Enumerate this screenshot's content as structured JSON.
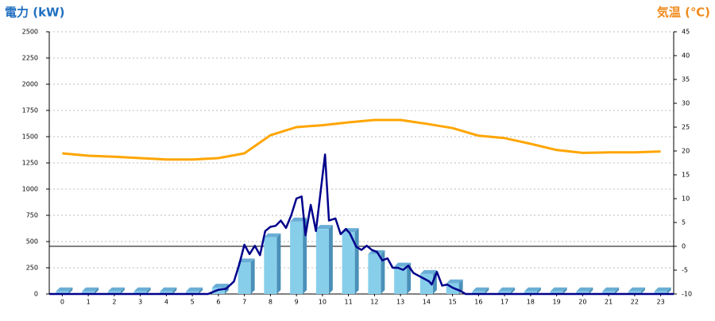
{
  "chart_data": {
    "type": "combo",
    "title": "電力 (kW)",
    "y2_title": "気温 (℃)",
    "categories": [
      "0",
      "1",
      "2",
      "3",
      "4",
      "5",
      "6",
      "7",
      "8",
      "9",
      "10",
      "11",
      "12",
      "13",
      "14",
      "15",
      "16",
      "17",
      "18",
      "19",
      "20",
      "21",
      "22",
      "23"
    ],
    "xlim": [
      -0.5,
      23.5
    ],
    "ylim": [
      0,
      2500
    ],
    "yticks": [
      0,
      250,
      500,
      750,
      1000,
      1250,
      1500,
      1750,
      2000,
      2250,
      2500
    ],
    "y2lim": [
      -10,
      45
    ],
    "y2ticks": [
      -10,
      -5,
      0,
      5,
      10,
      15,
      20,
      25,
      30,
      35,
      40,
      45
    ],
    "grid": true,
    "y2_zero_line": true,
    "series": [
      {
        "type": "bar",
        "color": "#87ceeb",
        "values": [
          25,
          25,
          25,
          25,
          25,
          25,
          60,
          300,
          540,
          690,
          620,
          590,
          380,
          260,
          190,
          100,
          25,
          25,
          25,
          25,
          25,
          25,
          25,
          25
        ]
      },
      {
        "type": "line",
        "color": "#ffa500",
        "axis": "y2",
        "values": [
          19.5,
          19,
          18.8,
          18.5,
          18.2,
          18.2,
          18.5,
          19.5,
          23.3,
          25,
          25.4,
          26,
          26.5,
          26.5,
          25.7,
          24.8,
          23.2,
          22.7,
          21.5,
          20.2,
          19.6,
          19.7,
          19.7,
          19.9
        ]
      },
      {
        "type": "line",
        "color": "#00008b",
        "x": [
          -0.5,
          5.6,
          6.0,
          6.3,
          6.6,
          6.8,
          7.0,
          7.2,
          7.4,
          7.6,
          7.8,
          8.0,
          8.2,
          8.4,
          8.6,
          8.8,
          9.0,
          9.2,
          9.35,
          9.55,
          9.75,
          10.1,
          10.25,
          10.5,
          10.7,
          10.9,
          11.05,
          11.3,
          11.5,
          11.7,
          11.9,
          12.1,
          12.3,
          12.5,
          12.7,
          12.9,
          13.1,
          13.3,
          13.5,
          13.8,
          14.1,
          14.2,
          14.4,
          14.6,
          14.8,
          15.0,
          15.3,
          15.5,
          23.5
        ],
        "values": [
          0,
          0,
          40,
          50,
          120,
          280,
          470,
          380,
          460,
          370,
          600,
          640,
          650,
          700,
          630,
          750,
          910,
          930,
          560,
          850,
          600,
          1330,
          700,
          720,
          570,
          620,
          580,
          450,
          420,
          460,
          420,
          400,
          320,
          340,
          250,
          250,
          230,
          270,
          200,
          160,
          120,
          90,
          210,
          80,
          90,
          60,
          30,
          0,
          0
        ]
      }
    ]
  }
}
